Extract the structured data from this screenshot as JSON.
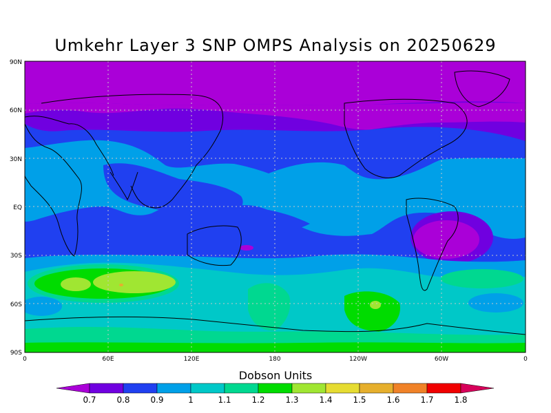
{
  "title": "Umkehr Layer 3 SNP OMPS Analysis on 20250629",
  "colorbar": {
    "title": "Dobson Units",
    "labels": [
      "0.7",
      "0.8",
      "0.9",
      "1",
      "1.1",
      "1.2",
      "1.3",
      "1.4",
      "1.5",
      "1.6",
      "1.7",
      "1.8"
    ],
    "colors": [
      "#aa00d8",
      "#7000e0",
      "#2040f0",
      "#00a0e8",
      "#00c8c8",
      "#00d890",
      "#00dc00",
      "#a0e632",
      "#e6dc32",
      "#e6af2d",
      "#f08228",
      "#f00000",
      "#d7005a"
    ]
  },
  "axes": {
    "y_ticks": [
      "90N",
      "60N",
      "30N",
      "EQ",
      "30S",
      "60S",
      "90S"
    ],
    "x_ticks": [
      "0",
      "60E",
      "120E",
      "180",
      "120W",
      "60W",
      "0"
    ]
  },
  "chart_data": {
    "type": "heatmap",
    "title": "Umkehr Layer 3 SNP OMPS Analysis on 20250629",
    "units": "Dobson Units",
    "lon_range": [
      0,
      360
    ],
    "lat_range": [
      -90,
      90
    ],
    "levels": [
      0.7,
      0.8,
      0.9,
      1.0,
      1.1,
      1.2,
      1.3,
      1.4,
      1.5,
      1.6,
      1.7,
      1.8
    ],
    "field_description_by_latitude": [
      {
        "lat": "90N-65N",
        "value_range": [
          0.7,
          0.8
        ]
      },
      {
        "lat": "65N-45N",
        "value_range": [
          0.8,
          0.9
        ]
      },
      {
        "lat": "40N-EQ",
        "value_range": [
          0.9,
          1.0
        ]
      },
      {
        "lat": "EQ-30S",
        "value_range": [
          0.8,
          0.9
        ]
      },
      {
        "lat": "35S-50S",
        "value_range": [
          1.0,
          1.4
        ]
      },
      {
        "lat": "60S-90S",
        "value_range": [
          1.1,
          1.3
        ]
      }
    ],
    "max_regions": [
      {
        "near_lon": "60E",
        "near_lat": "45S",
        "value": 1.4
      },
      {
        "near_lon": "110W",
        "near_lat": "60S",
        "value": 1.4
      }
    ],
    "min_regions": [
      {
        "near_lon": "60W",
        "near_lat": "15S",
        "value": 0.7
      }
    ]
  }
}
